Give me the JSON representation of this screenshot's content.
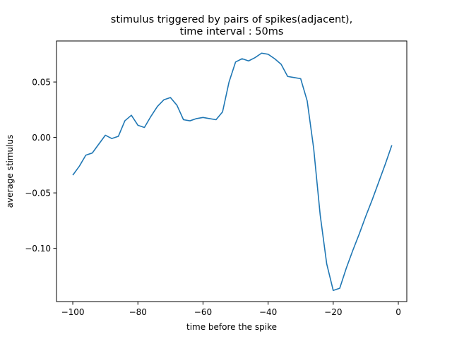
{
  "chart_data": {
    "type": "line",
    "title_lines": [
      "stimulus triggered by pairs of spikes(adjacent),",
      "time interval : 50ms"
    ],
    "xlabel": "time before the spike",
    "ylabel": "average stimulus",
    "xlim": [
      -105,
      2.6
    ],
    "ylim": [
      -0.148,
      0.087
    ],
    "xticks": [
      -100,
      -80,
      -60,
      -40,
      -20,
      0
    ],
    "xtick_labels": [
      "−100",
      "−80",
      "−60",
      "−40",
      "−20",
      "0"
    ],
    "yticks": [
      -0.1,
      -0.05,
      0.0,
      0.05
    ],
    "ytick_labels": [
      "−0.10",
      "−0.05",
      "0.00",
      "0.05"
    ],
    "grid": false,
    "line_color": "#1f77b4",
    "series": [
      {
        "x": [
          -100,
          -98,
          -96,
          -94,
          -92,
          -90,
          -88,
          -86,
          -84,
          -82,
          -80,
          -78,
          -76,
          -74,
          -72,
          -70,
          -68,
          -66,
          -64,
          -62,
          -60,
          -58,
          -56,
          -54,
          -52,
          -50,
          -48,
          -46,
          -44,
          -42,
          -40,
          -38,
          -36,
          -34,
          -32,
          -30,
          -28,
          -26,
          -24,
          -22,
          -20,
          -18,
          -16,
          -14,
          -12,
          -10,
          -8,
          -6,
          -4,
          -2
        ],
        "values": [
          -0.034,
          -0.026,
          -0.016,
          -0.014,
          -0.006,
          0.002,
          -0.001,
          0.001,
          0.015,
          0.02,
          0.011,
          0.009,
          0.019,
          0.028,
          0.034,
          0.036,
          0.029,
          0.016,
          0.015,
          0.017,
          0.018,
          0.017,
          0.016,
          0.023,
          0.05,
          0.068,
          0.071,
          0.069,
          0.072,
          0.076,
          0.075,
          0.071,
          0.066,
          0.055,
          0.054,
          0.053,
          0.033,
          -0.01,
          -0.07,
          -0.114,
          -0.138,
          -0.136,
          -0.118,
          -0.102,
          -0.087,
          -0.071,
          -0.056,
          -0.04,
          -0.024,
          -0.007
        ]
      }
    ]
  }
}
